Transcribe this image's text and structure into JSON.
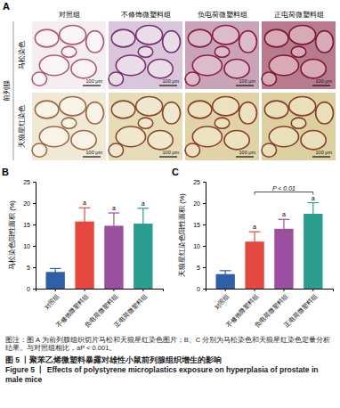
{
  "panel_a": {
    "panel": "A",
    "tissue": "前列腺",
    "groups": [
      "对照组",
      "不修饰微塑料组",
      "负电荷微塑料组",
      "正电荷微塑料组"
    ],
    "stains": [
      "马松染色",
      "天狼星红染色"
    ],
    "scale_bar": "100 μm"
  },
  "chart_data": [
    {
      "type": "bar",
      "panel": "B",
      "y_label": "马松染色阳性面积 (%)",
      "categories": [
        "对照组",
        "不修饰微塑料组",
        "负电荷微塑料组",
        "正电荷微塑料组"
      ],
      "values": [
        3.9,
        15.7,
        14.7,
        15.2
      ],
      "errors": [
        0.8,
        3.2,
        3.0,
        3.6
      ],
      "colors": [
        "#2f5fa7",
        "#e5483f",
        "#9b4f9e",
        "#2a9d8f"
      ],
      "letters": [
        null,
        "a",
        "a",
        "a"
      ],
      "ylim": [
        0,
        25
      ],
      "yticks": [
        0,
        5,
        10,
        15,
        20,
        25
      ]
    },
    {
      "type": "bar",
      "panel": "C",
      "y_label": "天狼星红染色阳性面积 (%)",
      "categories": [
        "对照组",
        "不修饰微塑料组",
        "负电荷微塑料组",
        "正电荷微塑料组"
      ],
      "values": [
        3.4,
        11.0,
        14.0,
        17.5
      ],
      "errors": [
        0.8,
        2.3,
        2.2,
        2.6
      ],
      "colors": [
        "#2f5fa7",
        "#e5483f",
        "#9b4f9e",
        "#2a9d8f"
      ],
      "letters": [
        null,
        "a",
        "a",
        "a"
      ],
      "comparisons": [
        {
          "between": [
            "不修饰微塑料组",
            "正电荷微塑料组"
          ],
          "label": "P < 0.01"
        }
      ],
      "ylim": [
        0,
        25
      ],
      "yticks": [
        0,
        5,
        10,
        15,
        20,
        25
      ]
    }
  ],
  "caption": {
    "note": "图注：图 A 为前列腺组织切片马松和天狼星红染色图片；B、C 分别为马松染色和天狼星红染色定量分析结果。与对照组相比，aP < 0.001。",
    "title_cn": "图 5 丨聚苯乙烯微塑料暴露对雄性小鼠前列腺组织增生的影响",
    "title_en": "Figure 5 丨 Effects of polystyrene microplastics exposure on hyperplasia of prostate in male mice"
  }
}
